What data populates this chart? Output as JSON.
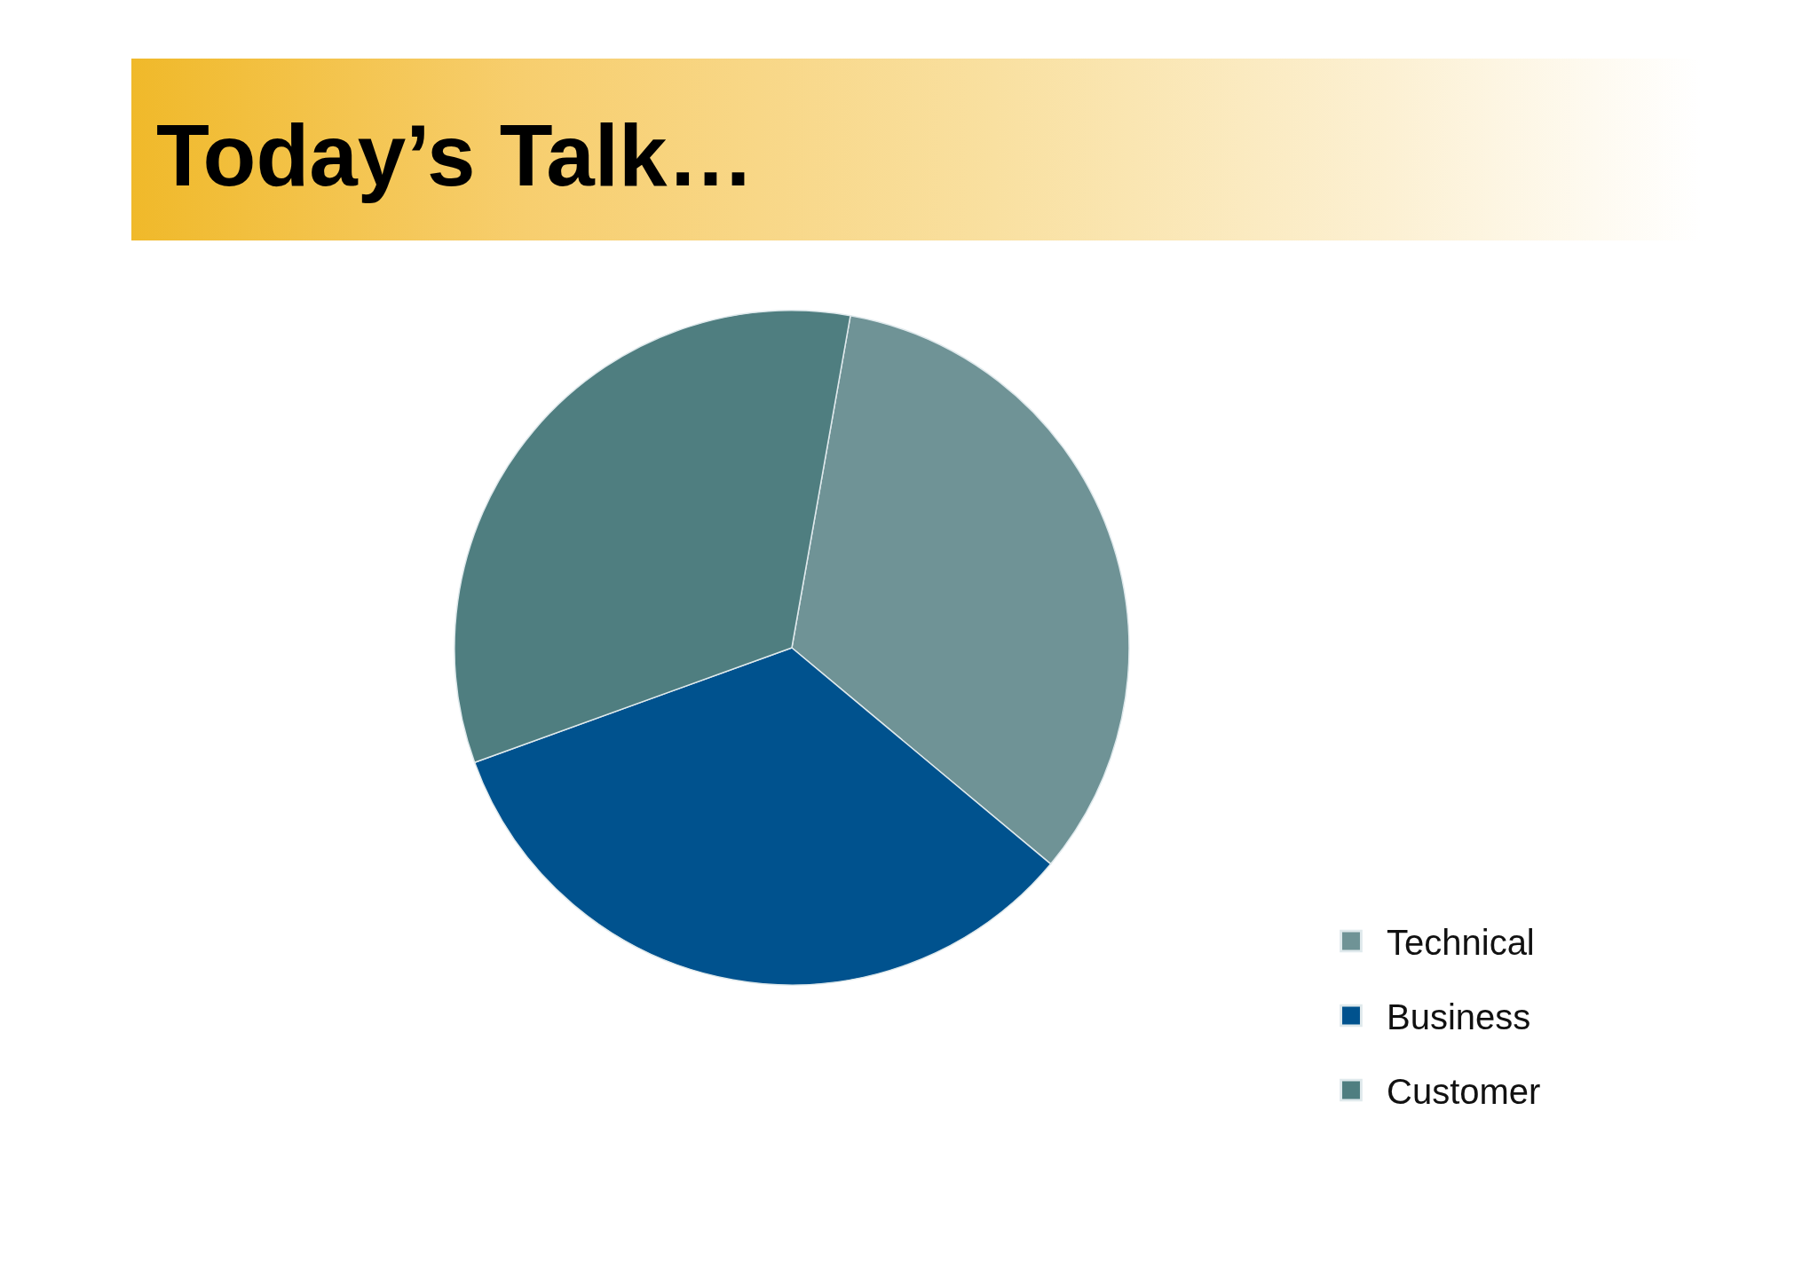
{
  "chart_data": {
    "type": "pie",
    "title": "Today’s Talk…",
    "categories": [
      "Technical",
      "Business",
      "Customer"
    ],
    "values": [
      33.3,
      33.4,
      33.3
    ],
    "colors": [
      "#6f9396",
      "#00528e",
      "#4f7e80"
    ],
    "legend": "bottom right"
  }
}
